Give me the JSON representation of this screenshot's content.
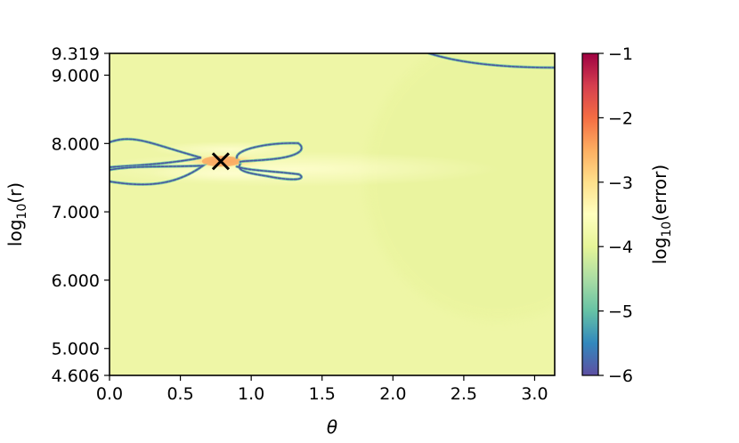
{
  "chart_data": {
    "type": "heatmap",
    "title": "",
    "xlabel": "θ",
    "ylabel_main": "log",
    "ylabel_sub": "10",
    "ylabel_tail": "(r)",
    "xlim": [
      0,
      3.1416
    ],
    "ylim": [
      4.606,
      9.319
    ],
    "x_ticks": [
      {
        "value": 0.0,
        "label": "0.0"
      },
      {
        "value": 0.5,
        "label": "0.5"
      },
      {
        "value": 1.0,
        "label": "1.0"
      },
      {
        "value": 1.5,
        "label": "1.5"
      },
      {
        "value": 2.0,
        "label": "2.0"
      },
      {
        "value": 2.5,
        "label": "2.5"
      },
      {
        "value": 3.0,
        "label": "3.0"
      }
    ],
    "y_ticks": [
      {
        "value": 4.606,
        "label": "4.606"
      },
      {
        "value": 5.0,
        "label": "5.000"
      },
      {
        "value": 6.0,
        "label": "6.000"
      },
      {
        "value": 7.0,
        "label": "7.000"
      },
      {
        "value": 8.0,
        "label": "8.000"
      },
      {
        "value": 9.0,
        "label": "9.000"
      },
      {
        "value": 9.319,
        "label": "9.319"
      }
    ],
    "marker": {
      "symbol": "×",
      "theta": 0.785,
      "log10_r": 7.74
    },
    "colorbar": {
      "label_main": "log",
      "label_sub": "10",
      "label_tail": "(error)",
      "colormap": "Spectral",
      "range": [
        -6,
        -1
      ],
      "ticks": [
        {
          "value": -1,
          "label": "−1"
        },
        {
          "value": -2,
          "label": "−2"
        },
        {
          "value": -3,
          "label": "−3"
        },
        {
          "value": -4,
          "label": "−4"
        },
        {
          "value": -5,
          "label": "−5"
        },
        {
          "value": -6,
          "label": "−6"
        }
      ]
    },
    "background_log10_error": -3.9,
    "features": [
      {
        "kind": "hotspot",
        "theta": 0.785,
        "log10_r": 7.74,
        "log10_error": -3.0
      },
      {
        "kind": "low-error contour",
        "description": "butterfly-shaped loops around the marker",
        "log10_error": -5.8
      },
      {
        "kind": "low-error contour",
        "description": "arc near top-right corner",
        "log10_error": -5.8
      }
    ]
  }
}
